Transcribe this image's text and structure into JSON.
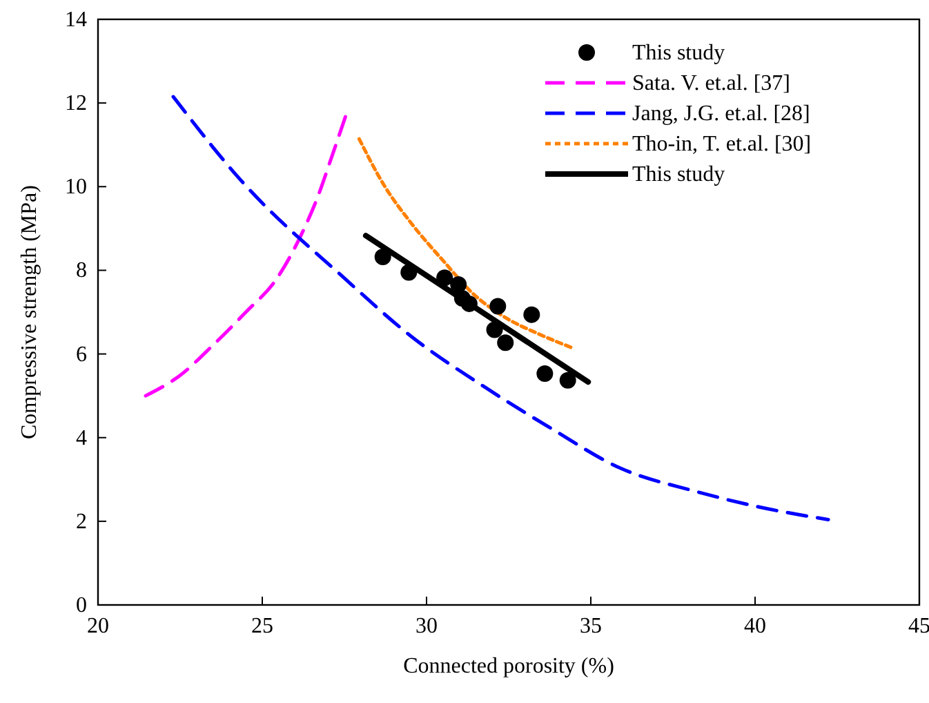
{
  "chart_data": {
    "type": "scatter",
    "xlabel": "Connected porosity (%)",
    "ylabel": "Compressive strength (MPa)",
    "xlim": [
      20,
      45
    ],
    "xticks": [
      20,
      25,
      30,
      35,
      40,
      45
    ],
    "ylim": [
      0,
      14
    ],
    "yticks": [
      0,
      2,
      4,
      6,
      8,
      10,
      12,
      14
    ],
    "grid": false,
    "legend": "top right",
    "series": [
      {
        "name": "This study",
        "color": "#000000",
        "marker": "circle",
        "x": [
          28.67,
          29.46,
          30.55,
          30.97,
          31.09,
          31.3,
          32.17,
          33.2,
          32.07,
          32.4,
          33.6,
          34.3
        ],
        "values": [
          8.32,
          7.95,
          7.82,
          7.66,
          7.33,
          7.2,
          7.14,
          6.94,
          6.58,
          6.27,
          5.53,
          5.37
        ]
      },
      {
        "name": "Sata. V. et.al. [37]",
        "type": "line",
        "color": "#ff00ff",
        "line_style": "dashed",
        "x": [
          21.45,
          22.5,
          23.5,
          24.5,
          25.43,
          26.18,
          26.69,
          27.1,
          27.53
        ],
        "values": [
          5.0,
          5.49,
          6.21,
          7.0,
          7.79,
          8.84,
          9.76,
          10.68,
          11.67
        ]
      },
      {
        "name": "Jang, J.G. et.al. [28]",
        "type": "line",
        "color": "#0000ff",
        "line_style": "dashed",
        "x": [
          22.29,
          24.34,
          27.53,
          29.55,
          31.73,
          33.75,
          35.93,
          38.12,
          40.13,
          42.23
        ],
        "values": [
          12.15,
          10.16,
          7.79,
          6.41,
          5.23,
          4.24,
          3.26,
          2.73,
          2.34,
          2.04
        ]
      },
      {
        "name": "Tho-in, T. et.al. [30]",
        "type": "line",
        "color": "#ff8000",
        "line_style": "dotted",
        "x": [
          27.95,
          28.71,
          29.55,
          30.55,
          31.39,
          32.4,
          33.41,
          34.42
        ],
        "values": [
          11.14,
          10.03,
          9.11,
          8.19,
          7.46,
          6.87,
          6.48,
          6.15
        ]
      },
      {
        "name": "This study",
        "type": "line",
        "color": "#000000",
        "line_style": "solid",
        "x": [
          28.15,
          34.92
        ],
        "values": [
          8.83,
          5.33
        ]
      }
    ]
  }
}
